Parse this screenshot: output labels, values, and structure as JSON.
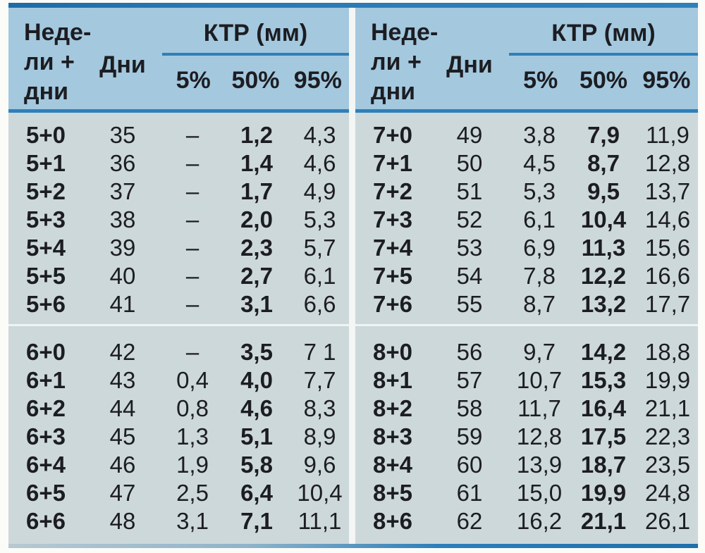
{
  "table": {
    "header": {
      "weeks_label_lines": [
        "Неде-",
        "ли +",
        "дни"
      ],
      "days_label": "Дни",
      "group_label": "КТР (мм)",
      "percentiles": [
        "5%",
        "50%",
        "95%"
      ]
    },
    "columns_meaning": [
      "weeks_plus_days",
      "days",
      "p5",
      "p50",
      "p95"
    ],
    "left_blocks": [
      {
        "rows": [
          [
            "5+0",
            "35",
            "–",
            "1,2",
            "4,3"
          ],
          [
            "5+1",
            "36",
            "–",
            "1,4",
            "4,6"
          ],
          [
            "5+2",
            "37",
            "–",
            "1,7",
            "4,9"
          ],
          [
            "5+3",
            "38",
            "–",
            "2,0",
            "5,3"
          ],
          [
            "5+4",
            "39",
            "–",
            "2,3",
            "5,7"
          ],
          [
            "5+5",
            "40",
            "–",
            "2,7",
            "6,1"
          ],
          [
            "5+6",
            "41",
            "–",
            "3,1",
            "6,6"
          ]
        ]
      },
      {
        "rows": [
          [
            "6+0",
            "42",
            "–",
            "3,5",
            "7 1"
          ],
          [
            "6+1",
            "43",
            "0,4",
            "4,0",
            "7,7"
          ],
          [
            "6+2",
            "44",
            "0,8",
            "4,6",
            "8,3"
          ],
          [
            "6+3",
            "45",
            "1,3",
            "5,1",
            "8,9"
          ],
          [
            "6+4",
            "46",
            "1,9",
            "5,8",
            "9,6"
          ],
          [
            "6+5",
            "47",
            "2,5",
            "6,4",
            "10,4"
          ],
          [
            "6+6",
            "48",
            "3,1",
            "7,1",
            "11,1"
          ]
        ]
      }
    ],
    "right_blocks": [
      {
        "rows": [
          [
            "7+0",
            "49",
            "3,8",
            "7,9",
            "11,9"
          ],
          [
            "7+1",
            "50",
            "4,5",
            "8,7",
            "12,8"
          ],
          [
            "7+2",
            "51",
            "5,3",
            "9,5",
            "13,7"
          ],
          [
            "7+3",
            "52",
            "6,1",
            "10,4",
            "14,6"
          ],
          [
            "7+4",
            "53",
            "6,9",
            "11,3",
            "15,6"
          ],
          [
            "7+5",
            "54",
            "7,8",
            "12,2",
            "16,6"
          ],
          [
            "7+6",
            "55",
            "8,7",
            "13,2",
            "17,7"
          ]
        ]
      },
      {
        "rows": [
          [
            "8+0",
            "56",
            "9,7",
            "14,2",
            "18,8"
          ],
          [
            "8+1",
            "57",
            "10,7",
            "15,3",
            "19,9"
          ],
          [
            "8+2",
            "58",
            "11,7",
            "16,4",
            "21,1"
          ],
          [
            "8+3",
            "59",
            "12,8",
            "17,5",
            "22,3"
          ],
          [
            "8+4",
            "60",
            "13,9",
            "18,7",
            "23,5"
          ],
          [
            "8+5",
            "61",
            "15,0",
            "19,9",
            "24,8"
          ],
          [
            "8+6",
            "62",
            "16,2",
            "21,1",
            "26,1"
          ]
        ]
      }
    ]
  },
  "colors": {
    "header_bg": "#a4c8de",
    "body_bg": "#cdd8da",
    "accent_blue": "#2e80ba",
    "text": "#1c1d22"
  }
}
